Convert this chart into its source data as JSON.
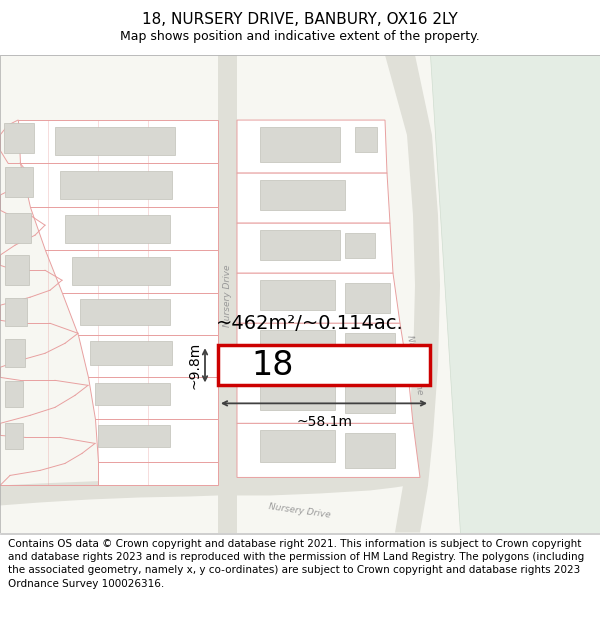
{
  "title": "18, NURSERY DRIVE, BANBURY, OX16 2LY",
  "subtitle": "Map shows position and indicative extent of the property.",
  "area_text": "~462m²/~0.114ac.",
  "width_text": "~58.1m",
  "height_text": "~9.8m",
  "plot_number": "18",
  "footer_text": "Contains OS data © Crown copyright and database right 2021. This information is subject to Crown copyright and database rights 2023 and is reproduced with the permission of HM Land Registry. The polygons (including the associated geometry, namely x, y co-ordinates) are subject to Crown copyright and database rights 2023 Ordnance Survey 100026316.",
  "map_bg": "#f7f7f2",
  "parcel_outline": "#e8a0a0",
  "parcel_fill": "#ffffff",
  "building_fill": "#d8d8d2",
  "building_edge": "#c0c0b8",
  "road_fill": "#e0e0d8",
  "green_fill": "#e4ede4",
  "green_edge": "#d0ddd0",
  "plot_outline_color": "#cc0000",
  "plot_fill": "#ffffff",
  "dim_line_color": "#404040",
  "road_text_color": "#999999",
  "title_fontsize": 11,
  "subtitle_fontsize": 9,
  "footer_fontsize": 7.5,
  "area_fontsize": 14,
  "plot_num_fontsize": 24,
  "dim_fontsize": 10
}
